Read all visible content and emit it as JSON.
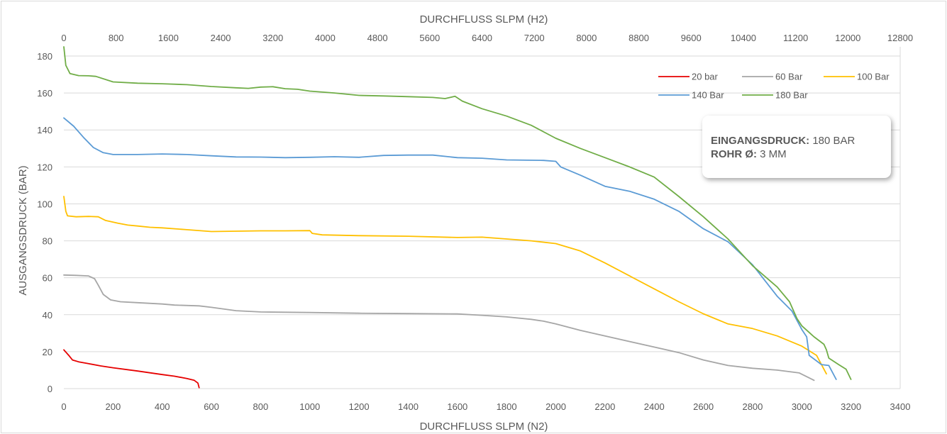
{
  "chart_data": {
    "type": "line",
    "title": "",
    "xlabel": "DURCHFLUSS SLPM (N2)",
    "x2label": "DURCHFLUSS SLPM (H2)",
    "ylabel": "AUSGANGSDRUCK (BAR)",
    "xlim": [
      0,
      3400
    ],
    "x2lim": [
      0,
      12800
    ],
    "ylim": [
      0,
      185
    ],
    "x_ticks": [
      "0",
      "200",
      "400",
      "600",
      "800",
      "1000",
      "1200",
      "1400",
      "1600",
      "1800",
      "2000",
      "2200",
      "2400",
      "2600",
      "2800",
      "3000",
      "3200",
      "3400"
    ],
    "x2_ticks": [
      "0",
      "800",
      "1600",
      "2400",
      "3200",
      "4000",
      "4800",
      "5600",
      "6400",
      "7200",
      "8000",
      "8800",
      "9600",
      "10400",
      "11200",
      "12000",
      "12800"
    ],
    "y_ticks": [
      "0",
      "20",
      "40",
      "60",
      "80",
      "100",
      "120",
      "140",
      "160",
      "180"
    ],
    "grid": "horizontal",
    "legend_position": "top-right",
    "series": [
      {
        "name": "20 bar",
        "color": "#e60000",
        "points": [
          [
            0,
            21
          ],
          [
            20,
            18
          ],
          [
            35,
            15.5
          ],
          [
            60,
            14.5
          ],
          [
            100,
            13.5
          ],
          [
            150,
            12.3
          ],
          [
            200,
            11.3
          ],
          [
            300,
            9.5
          ],
          [
            400,
            7.6
          ],
          [
            450,
            6.7
          ],
          [
            500,
            5.5
          ],
          [
            530,
            4.5
          ],
          [
            545,
            3
          ],
          [
            550,
            0.5
          ]
        ]
      },
      {
        "name": "60 Bar",
        "color": "#a6a6a6",
        "points": [
          [
            0,
            61.5
          ],
          [
            50,
            61.3
          ],
          [
            100,
            61
          ],
          [
            125,
            59.5
          ],
          [
            140,
            56
          ],
          [
            160,
            51
          ],
          [
            190,
            48
          ],
          [
            230,
            47
          ],
          [
            300,
            46.5
          ],
          [
            400,
            45.8
          ],
          [
            450,
            45.2
          ],
          [
            550,
            44.8
          ],
          [
            600,
            44
          ],
          [
            700,
            42.2
          ],
          [
            800,
            41.5
          ],
          [
            1000,
            41.2
          ],
          [
            1200,
            40.8
          ],
          [
            1400,
            40.6
          ],
          [
            1600,
            40.4
          ],
          [
            1700,
            39.7
          ],
          [
            1800,
            38.8
          ],
          [
            1900,
            37.5
          ],
          [
            1950,
            36.5
          ],
          [
            2000,
            35
          ],
          [
            2100,
            31.5
          ],
          [
            2200,
            28.5
          ],
          [
            2300,
            25.5
          ],
          [
            2400,
            22.5
          ],
          [
            2500,
            19.5
          ],
          [
            2600,
            15.5
          ],
          [
            2700,
            12.5
          ],
          [
            2800,
            11
          ],
          [
            2900,
            10
          ],
          [
            2990,
            8.5
          ],
          [
            3050,
            4.5
          ]
        ]
      },
      {
        "name": "100 Bar",
        "color": "#ffc000",
        "points": [
          [
            0,
            104
          ],
          [
            8,
            96
          ],
          [
            15,
            93.5
          ],
          [
            50,
            93
          ],
          [
            100,
            93.2
          ],
          [
            140,
            93
          ],
          [
            170,
            91
          ],
          [
            220,
            89.5
          ],
          [
            260,
            88.5
          ],
          [
            300,
            88
          ],
          [
            350,
            87.3
          ],
          [
            400,
            87
          ],
          [
            500,
            86
          ],
          [
            600,
            85
          ],
          [
            700,
            85.2
          ],
          [
            800,
            85.4
          ],
          [
            900,
            85.4
          ],
          [
            1000,
            85.5
          ],
          [
            1010,
            84
          ],
          [
            1050,
            83.2
          ],
          [
            1200,
            82.8
          ],
          [
            1400,
            82.5
          ],
          [
            1600,
            81.8
          ],
          [
            1700,
            82
          ],
          [
            1800,
            81
          ],
          [
            1900,
            80
          ],
          [
            2000,
            78.5
          ],
          [
            2100,
            74.5
          ],
          [
            2200,
            68
          ],
          [
            2300,
            61
          ],
          [
            2400,
            54
          ],
          [
            2500,
            47
          ],
          [
            2600,
            40.5
          ],
          [
            2700,
            35
          ],
          [
            2800,
            32.5
          ],
          [
            2900,
            28.5
          ],
          [
            3000,
            23
          ],
          [
            3060,
            18
          ],
          [
            3100,
            8
          ]
        ]
      },
      {
        "name": "140 Bar",
        "color": "#5b9bd5",
        "points": [
          [
            0,
            146.5
          ],
          [
            40,
            142
          ],
          [
            80,
            136
          ],
          [
            120,
            130.5
          ],
          [
            160,
            127.7
          ],
          [
            200,
            126.7
          ],
          [
            300,
            126.7
          ],
          [
            400,
            127
          ],
          [
            500,
            126.7
          ],
          [
            600,
            126
          ],
          [
            700,
            125.4
          ],
          [
            800,
            125.3
          ],
          [
            900,
            125
          ],
          [
            1000,
            125.2
          ],
          [
            1100,
            125.5
          ],
          [
            1200,
            125.2
          ],
          [
            1300,
            126.2
          ],
          [
            1400,
            126.4
          ],
          [
            1500,
            126.4
          ],
          [
            1600,
            125
          ],
          [
            1700,
            124.7
          ],
          [
            1800,
            123.8
          ],
          [
            1950,
            123.5
          ],
          [
            2000,
            123
          ],
          [
            2020,
            120
          ],
          [
            2100,
            115.5
          ],
          [
            2200,
            109.5
          ],
          [
            2300,
            106.8
          ],
          [
            2400,
            102.5
          ],
          [
            2500,
            96
          ],
          [
            2600,
            86.5
          ],
          [
            2700,
            79.5
          ],
          [
            2800,
            67
          ],
          [
            2900,
            50
          ],
          [
            2960,
            42
          ],
          [
            3000,
            32
          ],
          [
            3020,
            28
          ],
          [
            3030,
            18
          ],
          [
            3080,
            13
          ],
          [
            3110,
            12.5
          ],
          [
            3140,
            5
          ]
        ]
      },
      {
        "name": "180 Bar",
        "color": "#70ad47",
        "points": [
          [
            0,
            185
          ],
          [
            8,
            175
          ],
          [
            25,
            170.5
          ],
          [
            60,
            169.4
          ],
          [
            100,
            169.3
          ],
          [
            130,
            169
          ],
          [
            200,
            166
          ],
          [
            300,
            165.3
          ],
          [
            400,
            165
          ],
          [
            500,
            164.5
          ],
          [
            600,
            163.5
          ],
          [
            700,
            162.8
          ],
          [
            750,
            162.5
          ],
          [
            800,
            163.2
          ],
          [
            850,
            163.4
          ],
          [
            900,
            162.3
          ],
          [
            950,
            162
          ],
          [
            1000,
            161
          ],
          [
            1100,
            160
          ],
          [
            1200,
            158.7
          ],
          [
            1300,
            158.4
          ],
          [
            1400,
            158
          ],
          [
            1500,
            157.6
          ],
          [
            1550,
            157
          ],
          [
            1590,
            158.2
          ],
          [
            1620,
            155.6
          ],
          [
            1700,
            151.5
          ],
          [
            1800,
            147.5
          ],
          [
            1900,
            142.5
          ],
          [
            2000,
            135.5
          ],
          [
            2100,
            130
          ],
          [
            2200,
            125
          ],
          [
            2300,
            120
          ],
          [
            2400,
            114.5
          ],
          [
            2500,
            104
          ],
          [
            2600,
            93
          ],
          [
            2700,
            81
          ],
          [
            2800,
            66.5
          ],
          [
            2900,
            55
          ],
          [
            2950,
            47
          ],
          [
            2980,
            38
          ],
          [
            3000,
            34
          ],
          [
            3050,
            28
          ],
          [
            3090,
            24
          ],
          [
            3100,
            21
          ],
          [
            3110,
            16.5
          ],
          [
            3150,
            13
          ],
          [
            3180,
            10.5
          ],
          [
            3200,
            5
          ]
        ]
      }
    ]
  },
  "info_box": {
    "label1": "EINGANGSDRUCK:",
    "value1": "180 BAR",
    "label2": "ROHR Ø:",
    "value2": "3 MM"
  }
}
